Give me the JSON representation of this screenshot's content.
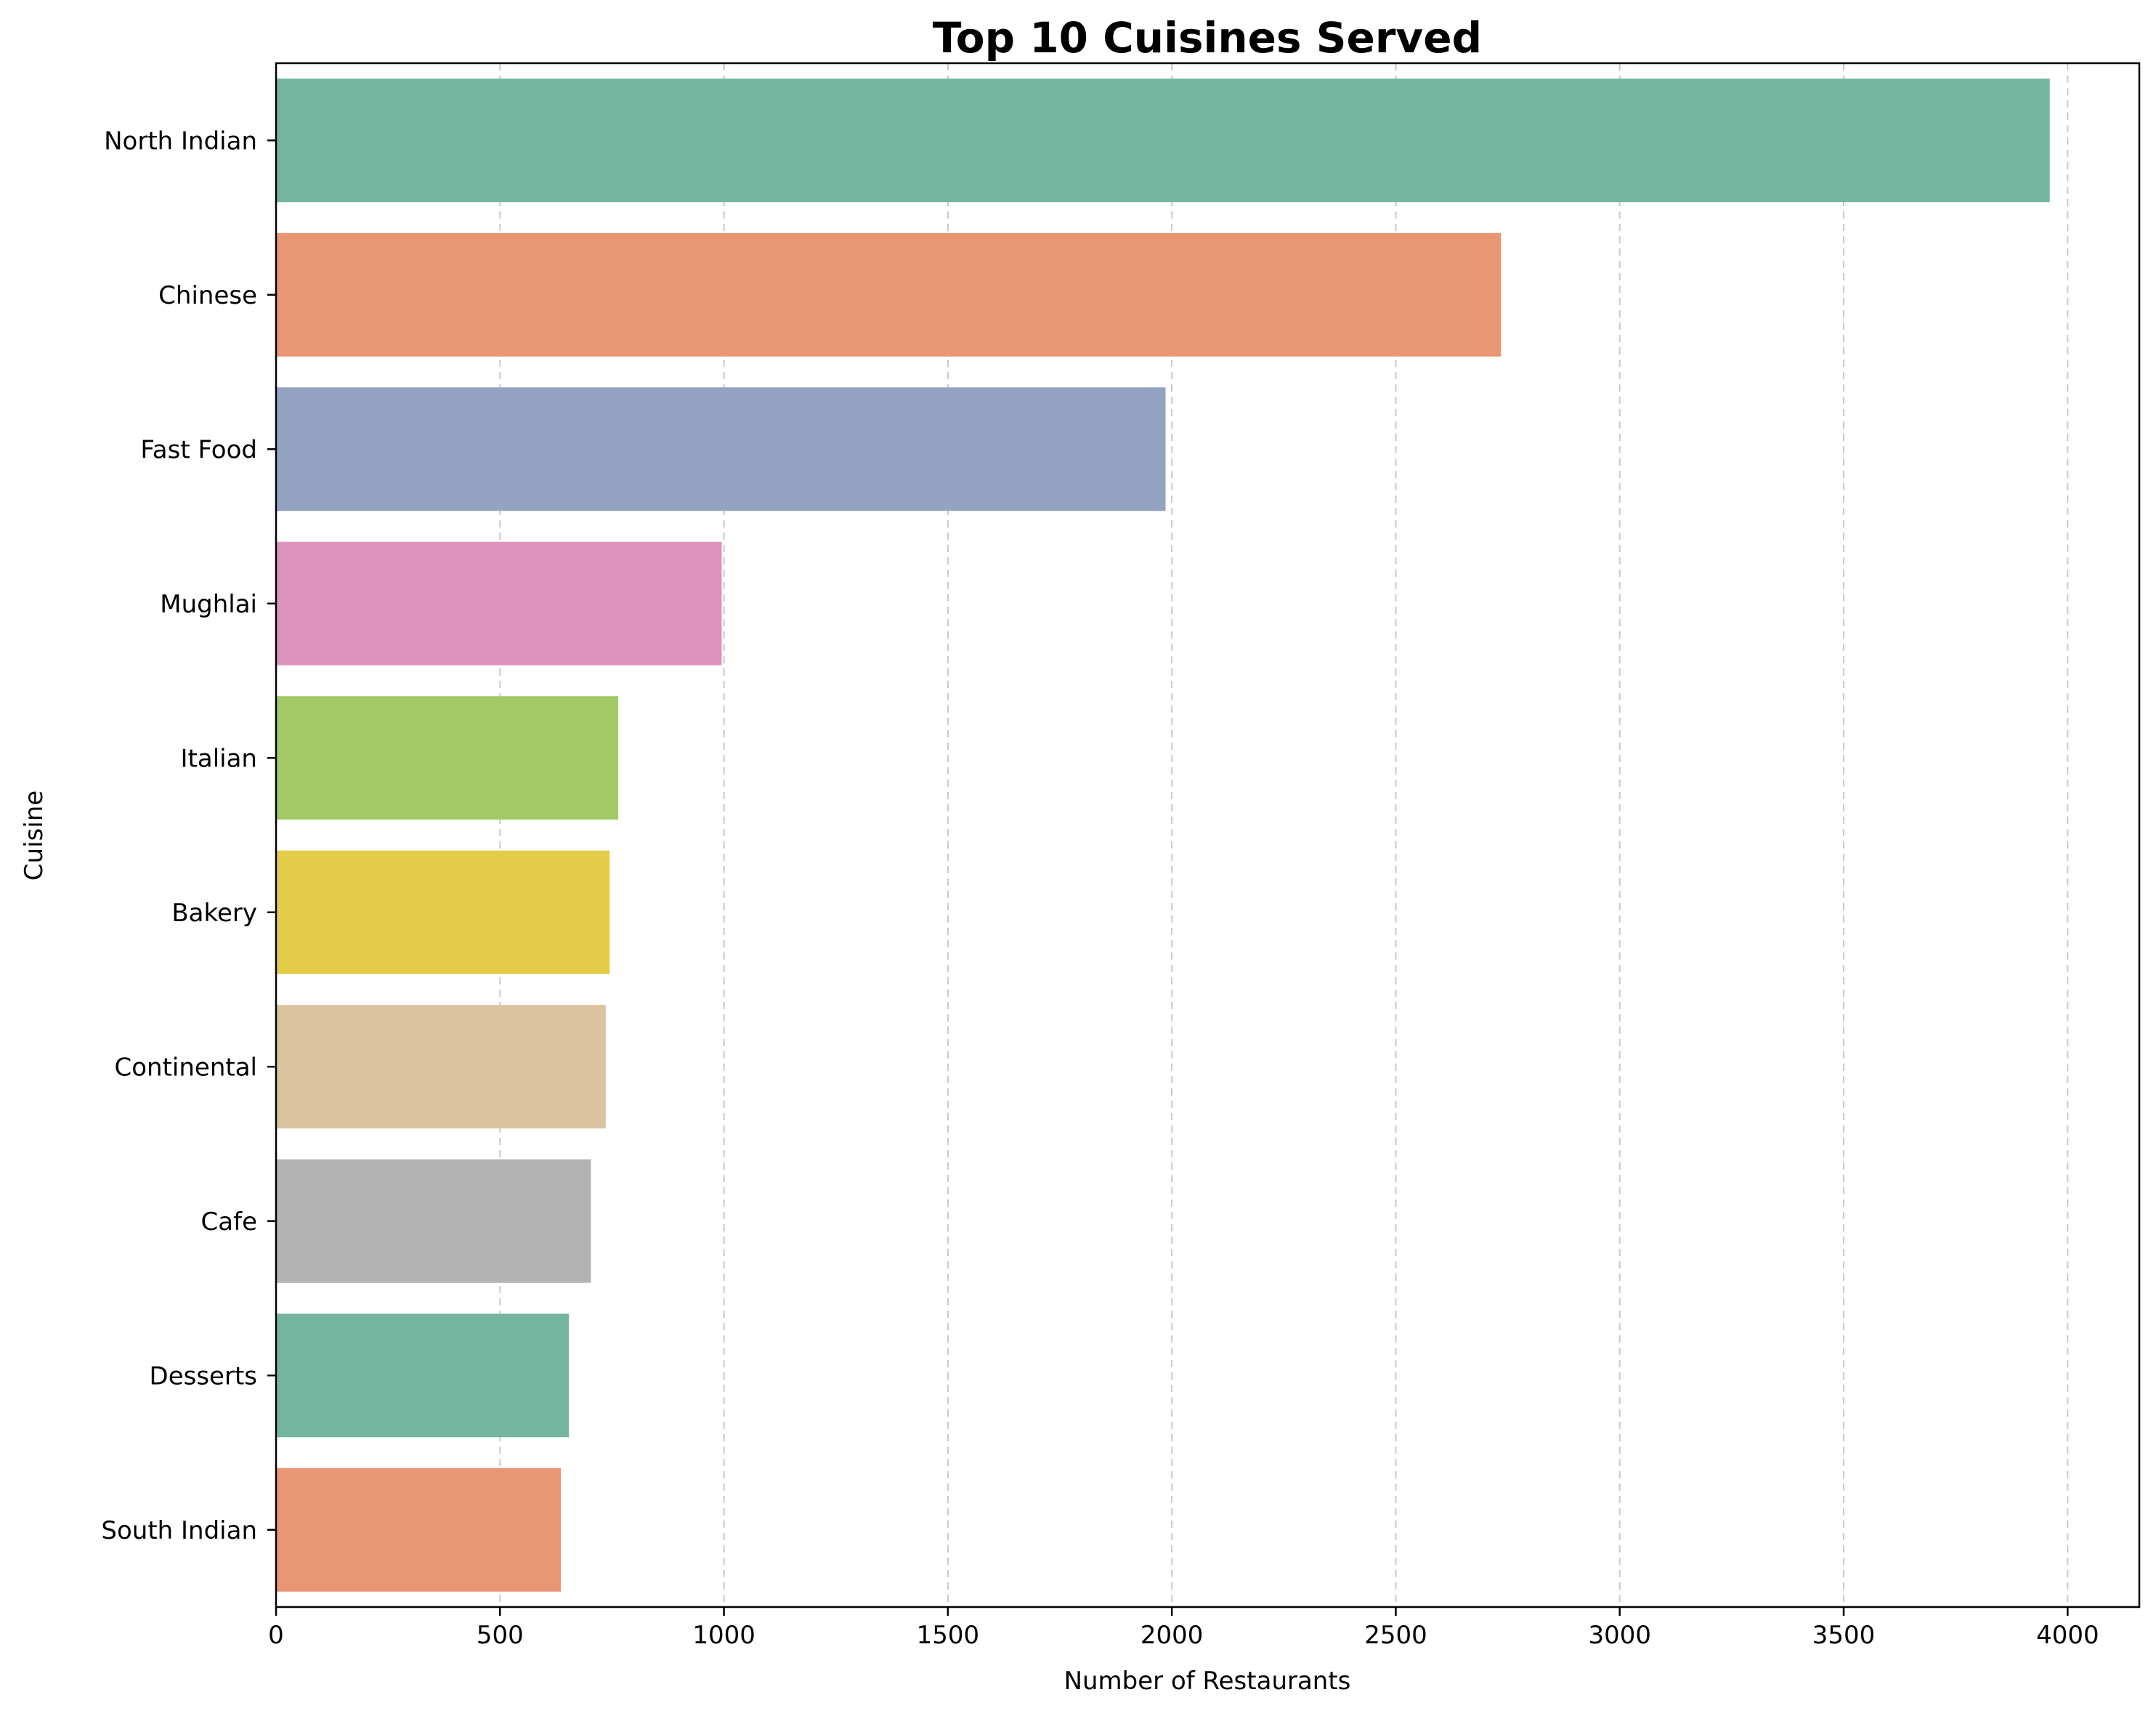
{
  "chart_data": {
    "type": "bar",
    "orientation": "horizontal",
    "title": "Top 10 Cuisines Served",
    "xlabel": "Number of Restaurants",
    "ylabel": "Cuisine",
    "categories": [
      "North Indian",
      "Chinese",
      "Fast Food",
      "Mughlai",
      "Italian",
      "Bakery",
      "Continental",
      "Cafe",
      "Desserts",
      "South Indian"
    ],
    "values": [
      3960,
      2735,
      1986,
      995,
      764,
      745,
      736,
      703,
      654,
      636
    ],
    "bar_colors": [
      "#73b59e",
      "#e99675",
      "#94a3c2",
      "#dc94be",
      "#a2c966",
      "#e5cb4a",
      "#dac39e",
      "#b3b3b3",
      "#73b59e",
      "#e99675"
    ],
    "xlim": [
      0,
      4160
    ],
    "xticks": [
      0,
      500,
      1000,
      1500,
      2000,
      2500,
      3000,
      3500,
      4000
    ],
    "grid": "x-dashed",
    "legend": "none"
  }
}
